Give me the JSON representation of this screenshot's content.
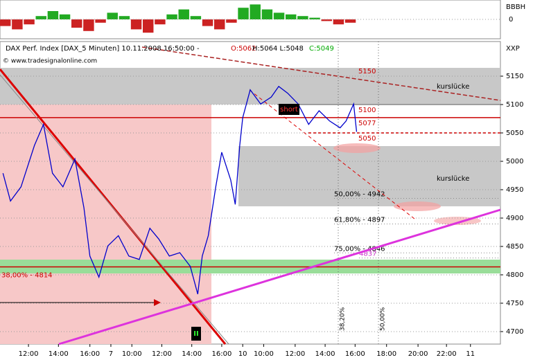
{
  "chart_data": {
    "type": "line",
    "header": {
      "name": "DAX Perf. Index [DAX_5 Minuten] 10.11.2008 16:50:00 -",
      "open": "O:5062",
      "highlow": "H:5064 L:5048",
      "close": "C:5049"
    },
    "copyright": "© www.tradesignalonline.com",
    "indicator_label": "BBBH",
    "indicator_zero": "0",
    "corner_label": "XXP",
    "series": [
      {
        "name": "DAX",
        "color": "#0000cc",
        "x": [
          0.2,
          0.7,
          1.4,
          2.3,
          2.9,
          3.5,
          4.2,
          5.0,
          5.6,
          6.0,
          6.6,
          7.2,
          7.9,
          8.6,
          9.3,
          10.0,
          10.6,
          11.3,
          12.0,
          12.7,
          13.2,
          13.5,
          13.9,
          14.4,
          14.8,
          15.4,
          15.7,
          16.0,
          16.2,
          16.7,
          17.4,
          18.1,
          18.6,
          19.2,
          19.9,
          20.6,
          21.3,
          22.0,
          22.7,
          23.1,
          23.6,
          23.8
        ],
        "values": [
          4979,
          4930,
          4955,
          5028,
          5065,
          4979,
          4955,
          5004,
          4918,
          4833,
          4796,
          4851,
          4869,
          4833,
          4827,
          4882,
          4863,
          4833,
          4839,
          4815,
          4766,
          4833,
          4869,
          4955,
          5016,
          4967,
          4924,
          5028,
          5077,
          5126,
          5101,
          5113,
          5132,
          5120,
          5101,
          5065,
          5089,
          5071,
          5059,
          5071,
          5101,
          5052
        ]
      }
    ],
    "indicator": {
      "color_pos": "#22aa22",
      "color_neg": "#cc2222",
      "ylim": [
        -1,
        1
      ],
      "values": [
        -0.4,
        -0.6,
        -0.3,
        0.2,
        0.5,
        0.3,
        -0.5,
        -0.7,
        -0.2,
        0.4,
        0.2,
        -0.6,
        -0.8,
        -0.3,
        0.3,
        0.6,
        0.2,
        -0.4,
        -0.6,
        -0.2,
        0.7,
        0.9,
        0.6,
        0.4,
        0.3,
        0.2,
        0.1,
        -0.1,
        -0.3,
        -0.2
      ]
    },
    "levels": [
      {
        "value": 5150,
        "label": "5150"
      },
      {
        "value": 5100,
        "label": "5100"
      },
      {
        "value": 5077,
        "label": "5077"
      },
      {
        "value": 5050,
        "label": "5050"
      },
      {
        "value": 4814,
        "label": "38,00% - 4814"
      }
    ],
    "fib_labels": [
      {
        "value": 4942,
        "label": "50,00% - 4942"
      },
      {
        "value": 4897,
        "label": "61,80% - 4897"
      },
      {
        "value": 4846,
        "label": "75,00% - 4846"
      },
      {
        "value": 4837,
        "label": "4837"
      }
    ],
    "gap_label": "kurslücke",
    "short_label": "short",
    "signal_label": "II",
    "vertical_labels": [
      "38,20%",
      "50,00%"
    ],
    "xlim": [
      0,
      33.4
    ],
    "ylim": [
      4678,
      5211
    ],
    "yticks": [
      4700,
      4750,
      4800,
      4850,
      4900,
      4950,
      5000,
      5050,
      5100,
      5150
    ],
    "xticks": [
      {
        "value": 1.9,
        "label": "12:00"
      },
      {
        "value": 3.9,
        "label": "14:00"
      },
      {
        "value": 6.0,
        "label": "16:00"
      },
      {
        "value": 7.4,
        "label": "7"
      },
      {
        "value": 8.8,
        "label": "10:00"
      },
      {
        "value": 10.8,
        "label": "12:00"
      },
      {
        "value": 12.8,
        "label": "14:00"
      },
      {
        "value": 14.8,
        "label": "16:00"
      },
      {
        "value": 16.2,
        "label": "10"
      },
      {
        "value": 17.6,
        "label": "10:00"
      },
      {
        "value": 19.7,
        "label": "12:00"
      },
      {
        "value": 21.7,
        "label": "14:00"
      },
      {
        "value": 23.7,
        "label": "16:00"
      },
      {
        "value": 25.8,
        "label": "18:00"
      },
      {
        "value": 27.9,
        "label": "20:00"
      },
      {
        "value": 29.8,
        "label": "22:00"
      },
      {
        "value": 31.4,
        "label": "11"
      }
    ],
    "grid": true
  }
}
